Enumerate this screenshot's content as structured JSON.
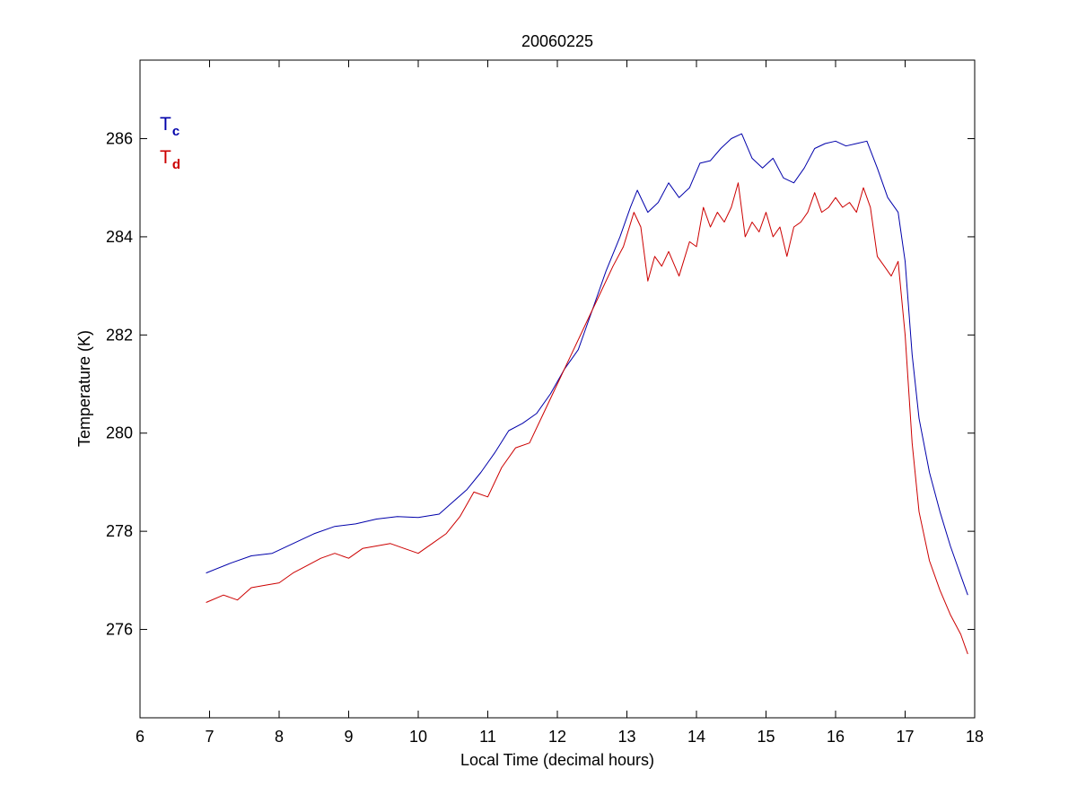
{
  "chart_data": {
    "type": "line",
    "title": "20060225",
    "xlabel": "Local Time (decimal hours)",
    "ylabel": "Temperature (K)",
    "xlim": [
      6,
      18
    ],
    "ylim": [
      274.2,
      287.6
    ],
    "xticks": [
      6,
      7,
      8,
      9,
      10,
      11,
      12,
      13,
      14,
      15,
      16,
      17,
      18
    ],
    "yticks": [
      276,
      278,
      280,
      282,
      284,
      286
    ],
    "grid": false,
    "legend_position": "top-left",
    "series": [
      {
        "name": "T",
        "subscript": "c",
        "color": "#0000aa",
        "x": [
          6.95,
          7.3,
          7.6,
          7.9,
          8.2,
          8.5,
          8.8,
          9.1,
          9.4,
          9.7,
          10.0,
          10.3,
          10.5,
          10.7,
          10.9,
          11.1,
          11.3,
          11.5,
          11.7,
          11.9,
          12.1,
          12.3,
          12.5,
          12.7,
          12.9,
          13.05,
          13.15,
          13.3,
          13.45,
          13.6,
          13.75,
          13.9,
          14.05,
          14.2,
          14.35,
          14.5,
          14.65,
          14.8,
          14.95,
          15.1,
          15.25,
          15.4,
          15.55,
          15.7,
          15.85,
          16.0,
          16.15,
          16.3,
          16.45,
          16.6,
          16.75,
          16.9,
          17.0,
          17.1,
          17.2,
          17.35,
          17.5,
          17.65,
          17.8,
          17.9
        ],
        "values": [
          277.15,
          277.35,
          277.5,
          277.55,
          277.75,
          277.95,
          278.1,
          278.15,
          278.25,
          278.3,
          278.28,
          278.35,
          278.6,
          278.85,
          279.2,
          279.6,
          280.05,
          280.2,
          280.4,
          280.8,
          281.3,
          281.7,
          282.5,
          283.3,
          284.0,
          284.6,
          284.95,
          284.5,
          284.7,
          285.1,
          284.8,
          285.0,
          285.5,
          285.55,
          285.8,
          286.0,
          286.1,
          285.6,
          285.4,
          285.6,
          285.2,
          285.1,
          285.4,
          285.8,
          285.9,
          285.95,
          285.85,
          285.9,
          285.95,
          285.4,
          284.8,
          284.5,
          283.5,
          281.6,
          280.3,
          279.2,
          278.4,
          277.7,
          277.1,
          276.7
        ]
      },
      {
        "name": "T",
        "subscript": "d",
        "color": "#cc0000",
        "x": [
          6.95,
          7.2,
          7.4,
          7.6,
          7.8,
          8.0,
          8.2,
          8.4,
          8.6,
          8.8,
          9.0,
          9.2,
          9.4,
          9.6,
          9.8,
          10.0,
          10.2,
          10.4,
          10.6,
          10.8,
          11.0,
          11.2,
          11.4,
          11.6,
          11.8,
          12.0,
          12.2,
          12.4,
          12.6,
          12.8,
          12.95,
          13.1,
          13.2,
          13.3,
          13.4,
          13.5,
          13.6,
          13.75,
          13.9,
          14.0,
          14.1,
          14.2,
          14.3,
          14.4,
          14.5,
          14.6,
          14.7,
          14.8,
          14.9,
          15.0,
          15.1,
          15.2,
          15.3,
          15.4,
          15.5,
          15.6,
          15.7,
          15.8,
          15.9,
          16.0,
          16.1,
          16.2,
          16.3,
          16.4,
          16.5,
          16.6,
          16.7,
          16.8,
          16.9,
          17.0,
          17.1,
          17.2,
          17.35,
          17.5,
          17.65,
          17.8,
          17.9
        ],
        "values": [
          276.55,
          276.7,
          276.6,
          276.85,
          276.9,
          276.95,
          277.15,
          277.3,
          277.45,
          277.55,
          277.45,
          277.65,
          277.7,
          277.75,
          277.65,
          277.55,
          277.75,
          277.95,
          278.3,
          278.8,
          278.7,
          279.3,
          279.7,
          279.8,
          280.4,
          281.0,
          281.6,
          282.2,
          282.8,
          283.4,
          283.8,
          284.5,
          284.2,
          283.1,
          283.6,
          283.4,
          283.7,
          283.2,
          283.9,
          283.8,
          284.6,
          284.2,
          284.5,
          284.3,
          284.6,
          285.1,
          284.0,
          284.3,
          284.1,
          284.5,
          284.0,
          284.2,
          283.6,
          284.2,
          284.3,
          284.5,
          284.9,
          284.5,
          284.6,
          284.8,
          284.6,
          284.7,
          284.5,
          285.0,
          284.6,
          283.6,
          283.4,
          283.2,
          283.5,
          282.0,
          279.8,
          278.4,
          277.4,
          276.8,
          276.3,
          275.9,
          275.5
        ]
      }
    ]
  }
}
